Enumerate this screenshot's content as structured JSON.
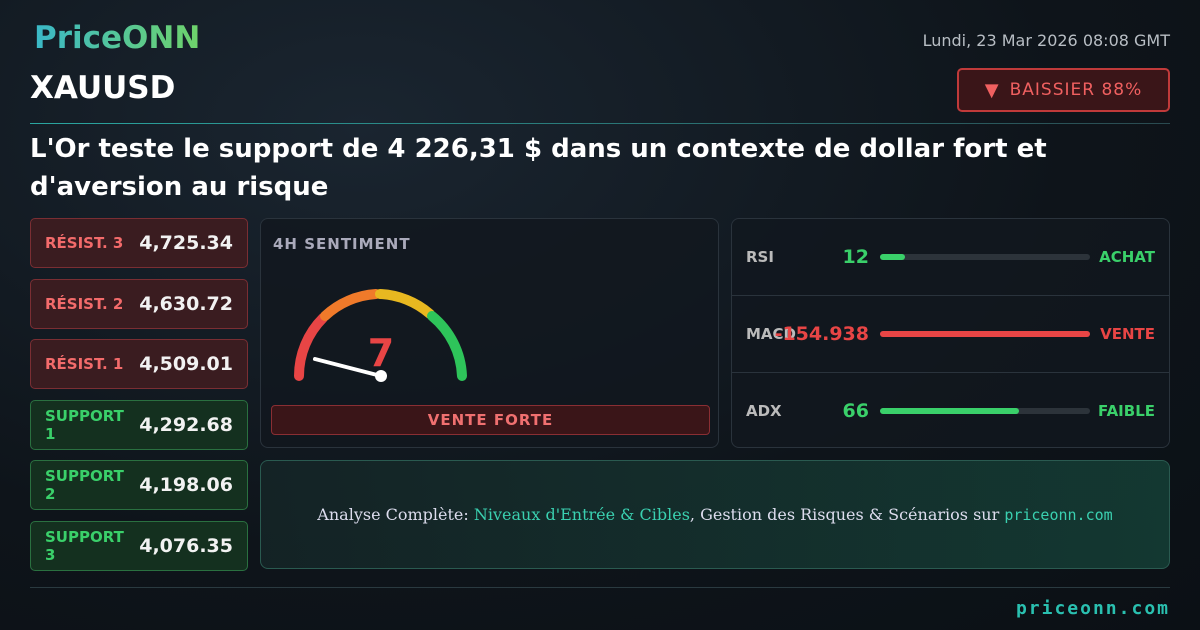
{
  "header": {
    "brand": "PriceONN",
    "date": "Lundi, 23 Mar 2026 08:08 GMT",
    "symbol": "XAUUSD",
    "signal": "BAISSIER 88%",
    "title": "L'Or teste le support de 4 226,31 $ dans un contexte de dollar fort et d'aversion au risque"
  },
  "levels": [
    {
      "label": "RÉSIST. 3",
      "value": "4,725.34"
    },
    {
      "label": "RÉSIST. 2",
      "value": "4,630.72"
    },
    {
      "label": "RÉSIST. 1",
      "value": "4,509.01"
    },
    {
      "label": "SUPPORT 1",
      "value": "4,292.68"
    },
    {
      "label": "SUPPORT 2",
      "value": "4,198.06"
    },
    {
      "label": "SUPPORT 3",
      "value": "4,076.35"
    }
  ],
  "sentiment": {
    "title": "4H SENTIMENT",
    "value": "7",
    "verdict": "VENTE FORTE"
  },
  "indicators": [
    {
      "name": "RSI",
      "value": "12",
      "signal": "ACHAT"
    },
    {
      "name": "MACD",
      "value": "-154.938",
      "signal": "VENTE"
    },
    {
      "name": "ADX",
      "value": "66",
      "signal": "FAIBLE"
    }
  ],
  "cta": {
    "prefix": "Analyse Complète: ",
    "highlight": "Niveaux d'Entrée & Cibles",
    "middle": ", Gestion des Risques & Scénarios sur ",
    "link": "priceonn.com"
  },
  "footer": {
    "url": "priceonn.com"
  }
}
